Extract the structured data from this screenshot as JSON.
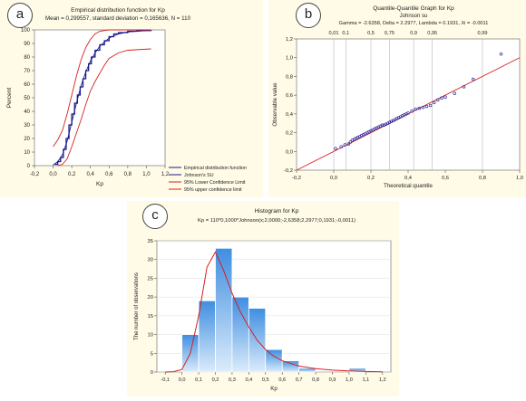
{
  "chart_data": [
    {
      "panel": "a",
      "type": "line",
      "title": "Empirical distribution function for Kp",
      "subtitle": "Mean = 0,299557, standard deviation = 0,165636, N = 110",
      "xlabel": "Kp",
      "ylabel": "Percent",
      "xlim": [
        -0.2,
        1.2
      ],
      "ylim": [
        0,
        100
      ],
      "xticks": [
        "-0,2",
        "0,0",
        "0,2",
        "0,4",
        "0,6",
        "0,8",
        "1,0",
        "1,2"
      ],
      "yticks": [
        "0",
        "10",
        "20",
        "30",
        "40",
        "50",
        "60",
        "70",
        "80",
        "90",
        "100"
      ],
      "legend_position": "right",
      "series": [
        {
          "name": "Empirical distribution function",
          "color": "#1a1a8c",
          "style": "step",
          "x": [
            0.02,
            0.05,
            0.08,
            0.11,
            0.14,
            0.17,
            0.2,
            0.23,
            0.26,
            0.29,
            0.32,
            0.35,
            0.38,
            0.41,
            0.45,
            0.5,
            0.55,
            0.6,
            0.65,
            0.7,
            0.8,
            0.9,
            1.05
          ],
          "y": [
            1,
            3,
            6,
            12,
            20,
            30,
            38,
            46,
            52,
            58,
            64,
            70,
            75,
            80,
            85,
            89,
            92,
            95,
            97,
            98,
            99,
            99.5,
            100
          ]
        },
        {
          "name": "Johnson's SU",
          "color": "#1a1a8c",
          "style": "line",
          "x": [
            0.0,
            0.05,
            0.1,
            0.15,
            0.2,
            0.25,
            0.3,
            0.35,
            0.4,
            0.45,
            0.5,
            0.6,
            0.7,
            0.8,
            1.05
          ],
          "y": [
            0.5,
            3,
            8,
            18,
            32,
            46,
            59,
            69,
            77,
            83,
            88,
            94,
            97,
            98.5,
            99.7
          ]
        },
        {
          "name": "95% Lower Confidence Limit",
          "color": "#d62020",
          "style": "line",
          "x": [
            0.05,
            0.1,
            0.15,
            0.2,
            0.25,
            0.3,
            0.35,
            0.4,
            0.45,
            0.5,
            0.55,
            0.6,
            0.7,
            0.8,
            1.05
          ],
          "y": [
            0,
            1,
            5,
            14,
            24,
            34,
            45,
            55,
            62,
            68,
            74,
            79,
            83,
            85,
            86
          ]
        },
        {
          "name": "95% upper confidence limit",
          "color": "#d62020",
          "style": "line",
          "x": [
            0.0,
            0.05,
            0.1,
            0.15,
            0.2,
            0.25,
            0.3,
            0.35,
            0.4,
            0.45,
            0.5,
            0.6,
            0.7,
            0.8,
            1.05
          ],
          "y": [
            14,
            19,
            26,
            38,
            52,
            66,
            78,
            87,
            93,
            97,
            99,
            100,
            100,
            100,
            100
          ]
        }
      ]
    },
    {
      "panel": "b",
      "type": "scatter",
      "title": "Quantile-Quantile Graph for Kp",
      "subtitle": "Johnson su",
      "subtitle2": "Gamma = -2.6358, Delta = 2.2977, Lambda = 0.1931, Xi = -0.0011",
      "xlabel": "Theoretical quantile",
      "ylabel": "Observable value",
      "xlim": [
        -0.2,
        1.0
      ],
      "ylim": [
        -0.2,
        1.2
      ],
      "xticks": [
        "-0,2",
        "0,0",
        "0,2",
        "0,4",
        "0,6",
        "0,8",
        "1,0"
      ],
      "yticks": [
        "-0,2",
        "0,0",
        "0,2",
        "0,4",
        "0,6",
        "0,8",
        "1,0",
        "1,2"
      ],
      "top_ticks": [
        {
          "label": "0,01",
          "at": 0.0
        },
        {
          "label": "0,1",
          "at": 0.065
        },
        {
          "label": "0,5",
          "at": 0.2
        },
        {
          "label": "0,75",
          "at": 0.3
        },
        {
          "label": "0,9",
          "at": 0.43
        },
        {
          "label": "0,95",
          "at": 0.53
        },
        {
          "label": "0,99",
          "at": 0.8
        }
      ],
      "fit_line": {
        "x": [
          -0.2,
          1.0
        ],
        "y": [
          -0.2,
          1.0
        ],
        "color": "#d62020"
      },
      "point_color": "#2a2aa0",
      "x": [
        0.01,
        0.04,
        0.06,
        0.08,
        0.09,
        0.1,
        0.11,
        0.12,
        0.13,
        0.14,
        0.15,
        0.16,
        0.17,
        0.18,
        0.19,
        0.2,
        0.21,
        0.22,
        0.23,
        0.24,
        0.25,
        0.26,
        0.27,
        0.28,
        0.29,
        0.3,
        0.31,
        0.32,
        0.33,
        0.34,
        0.35,
        0.36,
        0.37,
        0.38,
        0.39,
        0.4,
        0.42,
        0.44,
        0.46,
        0.48,
        0.5,
        0.52,
        0.54,
        0.56,
        0.58,
        0.6,
        0.65,
        0.7,
        0.75,
        0.9
      ],
      "y": [
        0.03,
        0.05,
        0.07,
        0.08,
        0.1,
        0.12,
        0.13,
        0.14,
        0.15,
        0.16,
        0.17,
        0.18,
        0.19,
        0.2,
        0.21,
        0.22,
        0.23,
        0.24,
        0.25,
        0.26,
        0.27,
        0.28,
        0.28,
        0.29,
        0.3,
        0.31,
        0.32,
        0.33,
        0.34,
        0.35,
        0.36,
        0.37,
        0.38,
        0.39,
        0.4,
        0.41,
        0.43,
        0.45,
        0.46,
        0.47,
        0.48,
        0.49,
        0.52,
        0.55,
        0.57,
        0.58,
        0.62,
        0.69,
        0.77,
        1.04
      ]
    },
    {
      "panel": "c",
      "type": "bar",
      "title": "Histogram for Kp",
      "subtitle": "Kp = 110*0,1000*Johnson(x;2,0000;-2,6358;2,2977;0,1931;-0,0011)",
      "xlabel": "Kp",
      "ylabel": "The number of observations",
      "xlim": [
        -0.15,
        1.25
      ],
      "ylim": [
        0,
        35
      ],
      "xticks": [
        "-0,1",
        "0,0",
        "0,1",
        "0,2",
        "0,3",
        "0,4",
        "0,5",
        "0,6",
        "0,7",
        "0,8",
        "0,9",
        "1,0",
        "1,1",
        "1,2"
      ],
      "yticks": [
        "0",
        "5",
        "10",
        "15",
        "20",
        "25",
        "30",
        "35"
      ],
      "bins": [
        [
          0.0,
          0.1
        ],
        [
          0.1,
          0.2
        ],
        [
          0.2,
          0.3
        ],
        [
          0.3,
          0.4
        ],
        [
          0.4,
          0.5
        ],
        [
          0.5,
          0.6
        ],
        [
          0.6,
          0.7
        ],
        [
          0.7,
          0.8
        ],
        [
          0.8,
          0.9
        ],
        [
          0.9,
          1.0
        ],
        [
          1.0,
          1.1
        ]
      ],
      "values": [
        10,
        19,
        33,
        20,
        17,
        6,
        3,
        1,
        0,
        0,
        1
      ],
      "bar_color": "#3f8ee0",
      "curve_color": "#d62020",
      "curve": {
        "x": [
          -0.1,
          -0.05,
          0.0,
          0.05,
          0.1,
          0.15,
          0.2,
          0.25,
          0.3,
          0.35,
          0.4,
          0.45,
          0.5,
          0.55,
          0.6,
          0.7,
          0.8,
          0.9,
          1.0,
          1.1,
          1.2
        ],
        "y": [
          0,
          0.1,
          0.7,
          5,
          15,
          28,
          32,
          27,
          21,
          16,
          12,
          8.5,
          6,
          4.2,
          3,
          1.6,
          0.9,
          0.5,
          0.3,
          0.15,
          0.05
        ]
      }
    }
  ],
  "badges": {
    "a": "a",
    "b": "b",
    "c": "c"
  }
}
